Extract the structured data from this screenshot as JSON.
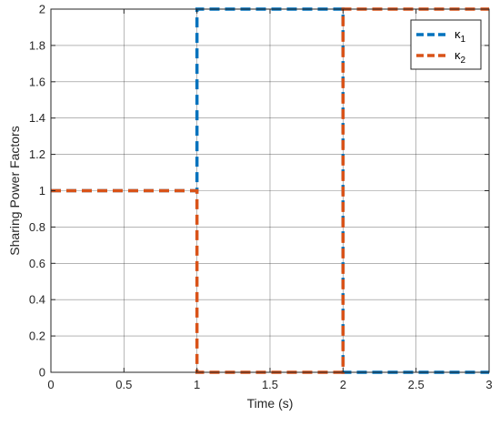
{
  "chart_data": {
    "type": "line",
    "xlabel": "Time (s)",
    "ylabel": "Sharing Power Factors",
    "xlim": [
      0,
      3
    ],
    "ylim": [
      0,
      2
    ],
    "xticks": [
      "0",
      "0.5",
      "1",
      "1.5",
      "2",
      "2.5",
      "3"
    ],
    "yticks": [
      "0",
      "0.2",
      "0.4",
      "0.6",
      "0.8",
      "1",
      "1.2",
      "1.4",
      "1.6",
      "1.8",
      "2"
    ],
    "grid": true,
    "legend_position": "top-right",
    "series": [
      {
        "name": "κ1",
        "legend_base": "κ",
        "legend_sub": "1",
        "color": "#0072BD",
        "style": "dashed",
        "x": [
          0,
          1,
          1,
          2,
          2,
          3
        ],
        "y": [
          1,
          1,
          2,
          2,
          0,
          0
        ]
      },
      {
        "name": "κ2",
        "legend_base": "κ",
        "legend_sub": "2",
        "color": "#D95319",
        "style": "dashed",
        "x": [
          0,
          1,
          1,
          2,
          2,
          3
        ],
        "y": [
          1,
          1,
          0,
          0,
          2,
          2
        ]
      }
    ]
  }
}
